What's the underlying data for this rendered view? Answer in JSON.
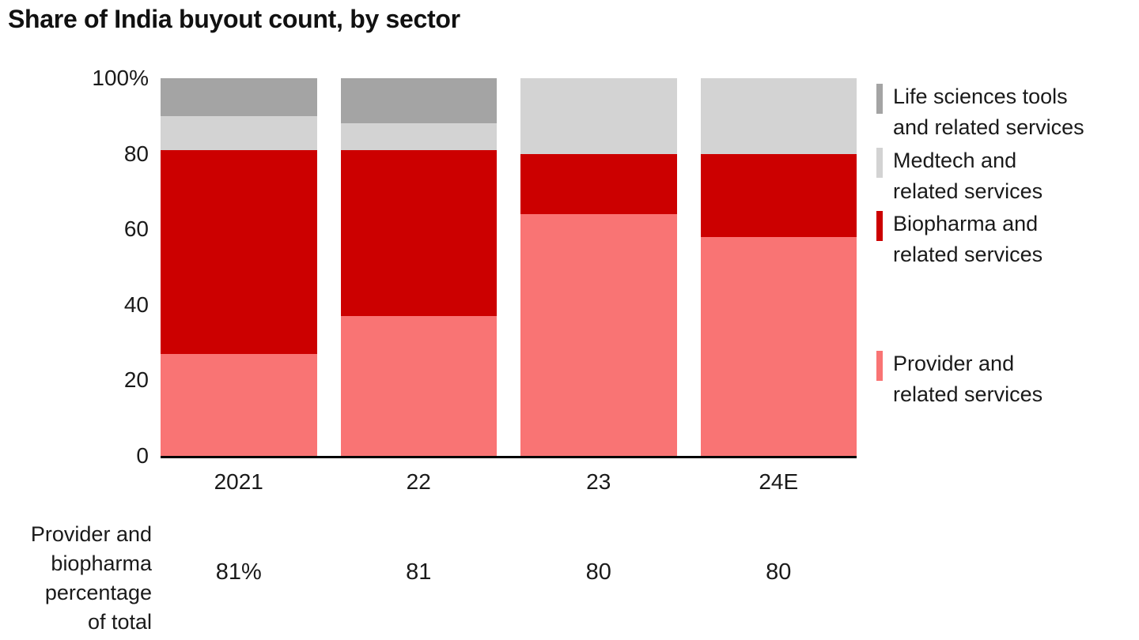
{
  "title": "Share of India buyout count, by sector",
  "chart_data": {
    "type": "bar",
    "stacked": true,
    "title": "Share of India buyout count, by sector",
    "categories": [
      "2021",
      "22",
      "23",
      "24E"
    ],
    "series": [
      {
        "name": "Provider and related services",
        "color": "#f97474",
        "values": [
          27,
          37,
          64,
          58
        ]
      },
      {
        "name": "Biopharma and related services",
        "color": "#cc0000",
        "values": [
          54,
          44,
          16,
          22
        ]
      },
      {
        "name": "Medtech and related services",
        "color": "#d3d3d3",
        "values": [
          9,
          7,
          20,
          20
        ]
      },
      {
        "name": "Life sciences tools and related services",
        "color": "#a4a4a4",
        "values": [
          10,
          12,
          0,
          0
        ]
      }
    ],
    "ylim": [
      0,
      100
    ],
    "yticks": [
      {
        "label": "100%",
        "value": 100
      },
      {
        "label": "80",
        "value": 80
      },
      {
        "label": "60",
        "value": 60
      },
      {
        "label": "40",
        "value": 40
      },
      {
        "label": "20",
        "value": 20
      },
      {
        "label": "0",
        "value": 0
      }
    ],
    "grid": false,
    "legend_position": "right"
  },
  "legend": [
    {
      "label": "Life sciences tools\nand related services",
      "color": "#a4a4a4"
    },
    {
      "label": "Medtech and\nrelated services",
      "color": "#d3d3d3"
    },
    {
      "label": "Biopharma and\nrelated services",
      "color": "#cc0000"
    },
    {
      "label": "Provider and\nrelated services",
      "color": "#f97474"
    }
  ],
  "footer": {
    "label": "Provider and\nbiopharma\npercentage\nof total",
    "values": [
      "81%",
      "81",
      "80",
      "80"
    ]
  }
}
